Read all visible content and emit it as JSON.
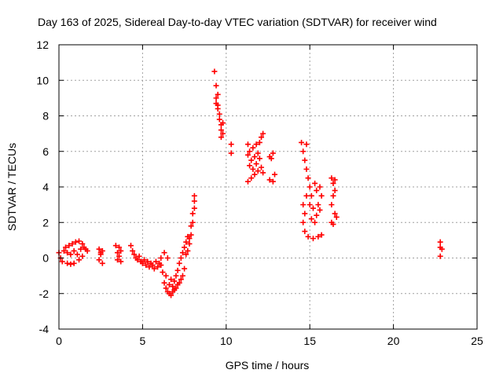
{
  "chart_data": {
    "type": "scatter",
    "title": "Day 163 of 2025, Sidereal Day-to-day VTEC variation (SDTVAR) for receiver wind",
    "xlabel": "GPS time / hours",
    "ylabel": "SDTVAR / TECUs",
    "xlim": [
      0,
      25
    ],
    "ylim": [
      -4,
      12
    ],
    "xticks": [
      "0",
      "5",
      "10",
      "15",
      "20",
      "25"
    ],
    "yticks": [
      "-4",
      "-2",
      "0",
      "2",
      "4",
      "6",
      "8",
      "10",
      "12"
    ],
    "grid": true,
    "marker": "plus",
    "colors": {
      "points": "#ff0000",
      "grid": "#a0a0a0",
      "axes": "#000000"
    },
    "series": [
      {
        "points": [
          [
            0.0,
            0.3
          ],
          [
            0.1,
            0.0
          ],
          [
            0.2,
            -0.2
          ],
          [
            0.3,
            0.4
          ],
          [
            0.4,
            0.6
          ],
          [
            0.5,
            -0.3
          ],
          [
            0.5,
            0.3
          ],
          [
            0.6,
            0.7
          ],
          [
            0.7,
            -0.35
          ],
          [
            0.7,
            0.2
          ],
          [
            0.8,
            0.8
          ],
          [
            0.9,
            -0.3
          ],
          [
            0.9,
            0.4
          ],
          [
            1.0,
            0.9
          ],
          [
            1.1,
            0.2
          ],
          [
            1.2,
            0.95
          ],
          [
            1.3,
            0.5
          ],
          [
            1.4,
            0.8
          ],
          [
            1.5,
            0.6
          ],
          [
            1.6,
            0.5
          ],
          [
            1.7,
            0.4
          ],
          [
            1.2,
            -0.1
          ],
          [
            1.4,
            0.1
          ],
          [
            2.4,
            0.5
          ],
          [
            2.4,
            -0.1
          ],
          [
            2.5,
            0.2
          ],
          [
            2.5,
            0.3
          ],
          [
            2.6,
            -0.3
          ],
          [
            2.6,
            0.4
          ],
          [
            3.4,
            0.7
          ],
          [
            3.5,
            0.3
          ],
          [
            3.5,
            -0.1
          ],
          [
            3.6,
            0.6
          ],
          [
            3.6,
            0.1
          ],
          [
            3.7,
            0.4
          ],
          [
            3.7,
            -0.2
          ],
          [
            4.3,
            0.7
          ],
          [
            4.4,
            0.4
          ],
          [
            4.5,
            0.2
          ],
          [
            4.6,
            0.0
          ],
          [
            4.7,
            -0.1
          ],
          [
            4.8,
            0.1
          ],
          [
            4.9,
            -0.2
          ],
          [
            5.0,
            -0.3
          ],
          [
            5.1,
            -0.1
          ],
          [
            5.2,
            -0.4
          ],
          [
            5.3,
            -0.2
          ],
          [
            5.4,
            -0.5
          ],
          [
            5.5,
            -0.3
          ],
          [
            5.6,
            -0.4
          ],
          [
            5.7,
            -0.6
          ],
          [
            5.8,
            -0.2
          ],
          [
            5.9,
            -0.5
          ],
          [
            6.0,
            -0.3
          ],
          [
            6.1,
            -0.4
          ],
          [
            6.1,
            0.0
          ],
          [
            6.2,
            -0.8
          ],
          [
            6.3,
            -1.4
          ],
          [
            6.3,
            0.3
          ],
          [
            6.4,
            -1.7
          ],
          [
            6.4,
            -1.0
          ],
          [
            6.5,
            -1.9
          ],
          [
            6.5,
            0.0
          ],
          [
            6.6,
            -2.0
          ],
          [
            6.6,
            -1.5
          ],
          [
            6.7,
            -2.1
          ],
          [
            6.7,
            -1.2
          ],
          [
            6.8,
            -1.9
          ],
          [
            6.8,
            -1.6
          ],
          [
            6.9,
            -1.8
          ],
          [
            6.9,
            -1.3
          ],
          [
            7.0,
            -1.7
          ],
          [
            7.0,
            -1.0
          ],
          [
            7.1,
            -1.5
          ],
          [
            7.1,
            -0.7
          ],
          [
            7.2,
            -1.4
          ],
          [
            7.2,
            -0.3
          ],
          [
            7.3,
            -1.2
          ],
          [
            7.3,
            0.0
          ],
          [
            7.4,
            -1.0
          ],
          [
            7.4,
            0.3
          ],
          [
            7.5,
            -0.6
          ],
          [
            7.5,
            0.6
          ],
          [
            7.6,
            0.2
          ],
          [
            7.6,
            0.9
          ],
          [
            7.7,
            0.4
          ],
          [
            7.7,
            1.2
          ],
          [
            7.8,
            0.8
          ],
          [
            7.8,
            1.1
          ],
          [
            7.9,
            1.3
          ],
          [
            7.9,
            1.8
          ],
          [
            8.0,
            2.0
          ],
          [
            8.0,
            2.5
          ],
          [
            8.1,
            2.8
          ],
          [
            8.1,
            3.2
          ],
          [
            8.1,
            3.5
          ],
          [
            9.3,
            10.5
          ],
          [
            9.4,
            9.7
          ],
          [
            9.4,
            9.0
          ],
          [
            9.4,
            8.7
          ],
          [
            9.5,
            9.2
          ],
          [
            9.5,
            8.6
          ],
          [
            9.5,
            8.4
          ],
          [
            9.6,
            8.1
          ],
          [
            9.6,
            7.8
          ],
          [
            9.7,
            7.5
          ],
          [
            9.7,
            7.2
          ],
          [
            9.7,
            6.8
          ],
          [
            9.8,
            7.0
          ],
          [
            9.8,
            7.6
          ],
          [
            10.3,
            6.4
          ],
          [
            10.3,
            5.9
          ],
          [
            11.3,
            6.4
          ],
          [
            11.3,
            5.8
          ],
          [
            11.3,
            4.3
          ],
          [
            11.4,
            5.2
          ],
          [
            11.4,
            6.0
          ],
          [
            11.5,
            5.5
          ],
          [
            11.5,
            4.5
          ],
          [
            11.6,
            6.2
          ],
          [
            11.6,
            5.0
          ],
          [
            11.7,
            5.7
          ],
          [
            11.7,
            4.7
          ],
          [
            11.8,
            6.4
          ],
          [
            11.8,
            5.3
          ],
          [
            11.9,
            5.9
          ],
          [
            11.9,
            4.9
          ],
          [
            12.0,
            6.5
          ],
          [
            12.0,
            5.6
          ],
          [
            12.1,
            5.1
          ],
          [
            12.1,
            6.8
          ],
          [
            12.2,
            7.0
          ],
          [
            12.2,
            4.8
          ],
          [
            12.6,
            5.7
          ],
          [
            12.6,
            4.4
          ],
          [
            12.7,
            5.6
          ],
          [
            12.8,
            5.9
          ],
          [
            12.8,
            4.3
          ],
          [
            12.9,
            4.7
          ],
          [
            14.5,
            6.5
          ],
          [
            14.6,
            6.0
          ],
          [
            14.6,
            3.0
          ],
          [
            14.6,
            2.0
          ],
          [
            14.7,
            5.5
          ],
          [
            14.7,
            2.5
          ],
          [
            14.7,
            1.5
          ],
          [
            14.8,
            6.4
          ],
          [
            14.8,
            5.0
          ],
          [
            14.8,
            3.5
          ],
          [
            14.9,
            4.5
          ],
          [
            14.9,
            1.2
          ],
          [
            15.0,
            4.0
          ],
          [
            15.0,
            3.0
          ],
          [
            15.1,
            3.5
          ],
          [
            15.1,
            2.2
          ],
          [
            15.2,
            2.8
          ],
          [
            15.2,
            1.1
          ],
          [
            15.3,
            4.2
          ],
          [
            15.3,
            2.0
          ],
          [
            15.4,
            3.8
          ],
          [
            15.4,
            2.4
          ],
          [
            15.5,
            3.0
          ],
          [
            15.5,
            1.2
          ],
          [
            15.6,
            4.0
          ],
          [
            15.6,
            2.7
          ],
          [
            15.7,
            3.5
          ],
          [
            15.7,
            1.3
          ],
          [
            16.3,
            4.5
          ],
          [
            16.3,
            3.0
          ],
          [
            16.3,
            2.0
          ],
          [
            16.4,
            4.2
          ],
          [
            16.4,
            3.5
          ],
          [
            16.4,
            1.9
          ],
          [
            16.5,
            4.4
          ],
          [
            16.5,
            2.5
          ],
          [
            16.5,
            3.8
          ],
          [
            16.6,
            2.3
          ],
          [
            22.8,
            0.9
          ],
          [
            22.8,
            0.1
          ],
          [
            22.8,
            0.6
          ],
          [
            22.9,
            0.5
          ]
        ]
      }
    ]
  }
}
